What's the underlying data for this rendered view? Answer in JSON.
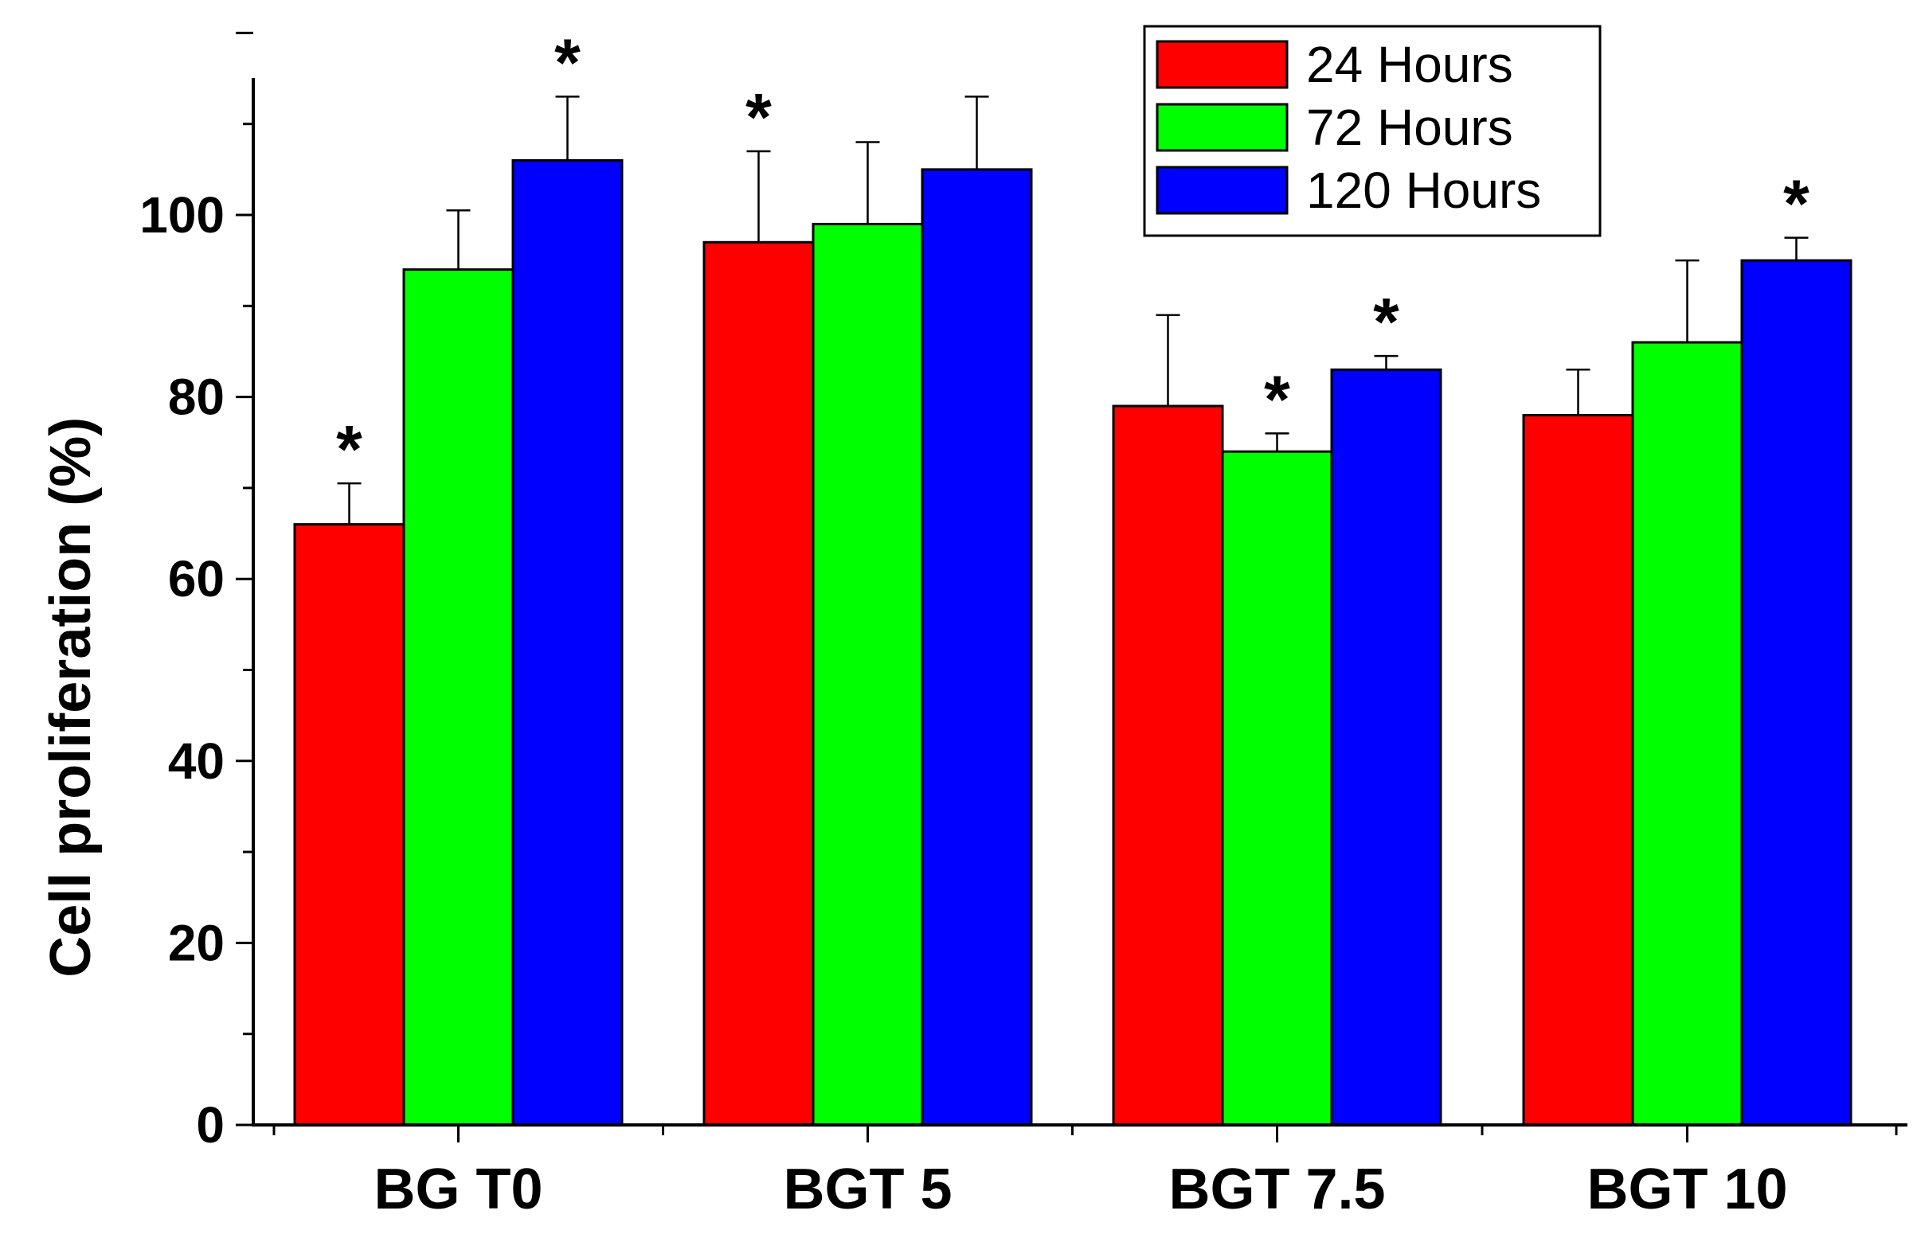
{
  "chart_data": {
    "type": "bar",
    "title": "",
    "xlabel": "",
    "ylabel": "Cell proliferation (%)",
    "ylim": [
      0,
      120
    ],
    "yticks": [
      0,
      20,
      40,
      60,
      80,
      100
    ],
    "ytick_labels": [
      "0",
      "20",
      "40",
      "60",
      "80",
      "100"
    ],
    "categories": [
      "BG T0",
      "BGT 5",
      "BGT 7.5",
      "BGT 10"
    ],
    "legend_position": "top-right",
    "significance_marker": "*",
    "series": [
      {
        "name": "24 Hours",
        "color": "#ff0000",
        "values": [
          66,
          97,
          79,
          78
        ],
        "error": [
          4.5,
          10,
          10,
          5
        ],
        "significant": [
          true,
          true,
          false,
          false
        ]
      },
      {
        "name": "72 Hours",
        "color": "#00ff00",
        "values": [
          94,
          99,
          74,
          86
        ],
        "error": [
          6.5,
          9,
          2,
          9
        ],
        "significant": [
          false,
          false,
          true,
          false
        ]
      },
      {
        "name": "120 Hours",
        "color": "#0000ff",
        "values": [
          106,
          105,
          83,
          95
        ],
        "error": [
          7,
          8,
          1.5,
          2.5
        ],
        "significant": [
          true,
          false,
          true,
          true
        ]
      }
    ]
  }
}
